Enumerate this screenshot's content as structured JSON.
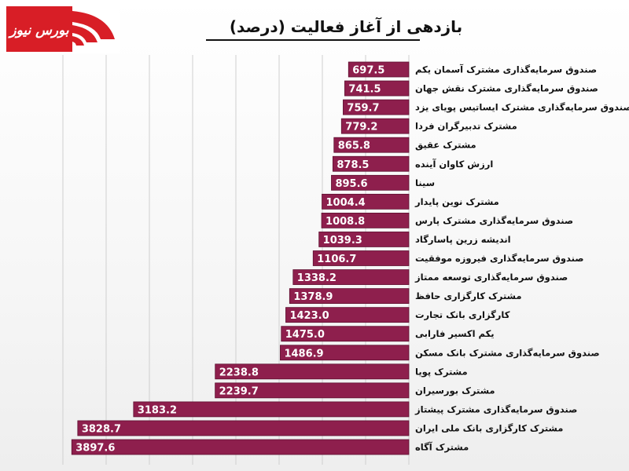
{
  "logo": {
    "text": "بورس نیوز",
    "colors": {
      "red": "#d81e26",
      "white": "#ffffff"
    }
  },
  "colors": {
    "bar": "#8e1f4d",
    "bar_edge": "#5e0f30",
    "grid": "#cfcfcf",
    "value_text": "#ffffff"
  },
  "chart_data": {
    "type": "bar",
    "orientation": "horizontal",
    "title": "بازدهی از آغاز فعالیت (درصد)",
    "xlim": [
      0,
      4000
    ],
    "grid": true,
    "categories": [
      "صندوق سرمایه‌گذاری مشترک آسمان یکم",
      "صندوق سرمایه‌گذاری مشترک نقش جهان",
      "صندوق سرمایه‌گذاری مشترک ایساتیس پویای یزد",
      "مشترک تدبیرگران فردا",
      "مشترک عقیق",
      "ارزش کاوان آینده",
      "سینا",
      "مشترک نوین پایدار",
      "صندوق سرمایه‌گذاری مشترک پارس",
      "اندیشه زرین پاسارگاد",
      "صندوق سرمایه‌گذاری فیروزه موفقیت",
      "صندوق سرمایه‌گذاری توسعه ممتاز",
      "مشترک کارگزاری حافظ",
      "کارگزاری بانک تجارت",
      "یکم اکسیر فارابی",
      "صندوق سرمایه‌گذاری مشترک بانک مسکن",
      "مشترک پویا",
      "مشترک بورسیران",
      "صندوق سرمایه‌گذاری مشترک پیشتاز",
      "مشترک کارگزاری بانک ملی ایران",
      "مشترک آگاه"
    ],
    "values": [
      697.5,
      741.5,
      759.7,
      779.2,
      865.8,
      878.5,
      895.6,
      1004.4,
      1008.8,
      1039.3,
      1106.7,
      1338.2,
      1378.9,
      1423.0,
      1475.0,
      1486.9,
      2238.8,
      2239.7,
      3183.2,
      3828.7,
      3897.6
    ],
    "value_labels": [
      "697.5",
      "741.5",
      "759.7",
      "779.2",
      "865.8",
      "878.5",
      "895.6",
      "1004.4",
      "1008.8",
      "1039.3",
      "1106.7",
      "1338.2",
      "1378.9",
      "1423.0",
      "1475.0",
      "1486.9",
      "2238.8",
      "2239.7",
      "3183.2",
      "3828.7",
      "3897.6"
    ]
  }
}
